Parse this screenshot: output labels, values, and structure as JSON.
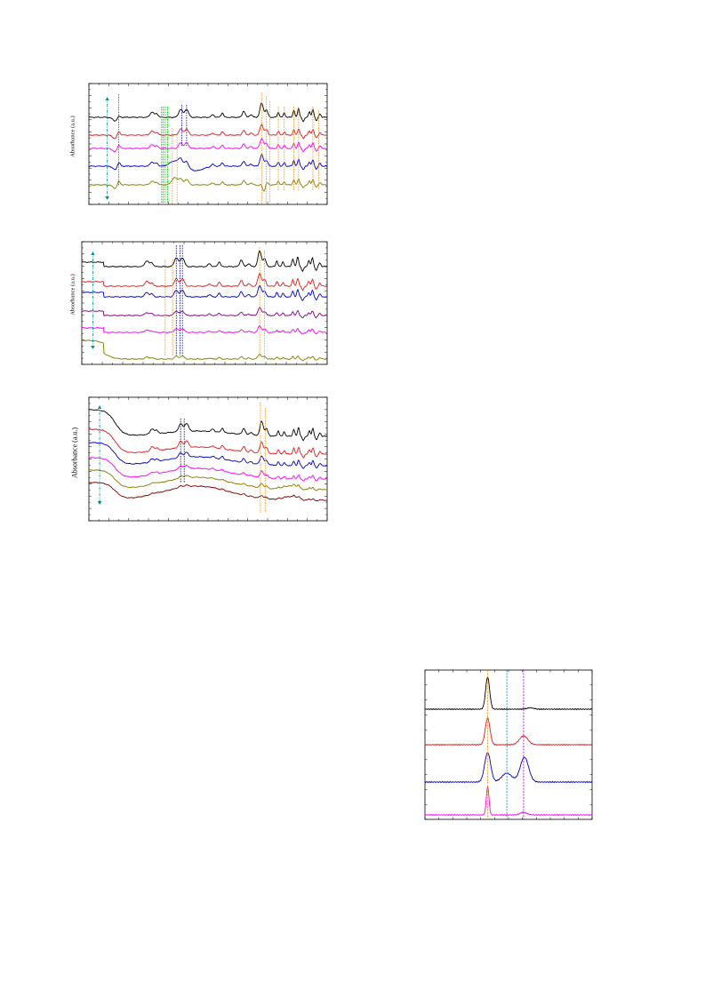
{
  "colors": {
    "black": "#000000",
    "red": "#e41a1c",
    "magenta": "#ff00ff",
    "blue": "#0000cc",
    "olive": "#808000",
    "purple": "#800080",
    "maroon": "#800000",
    "green": "#00dd00",
    "orange": "#ff8c00",
    "teal": "#008b8b",
    "violet": "#a000c8",
    "navy": "#000080"
  },
  "chart_data": [
    {
      "id": "a",
      "type": "line",
      "title": "",
      "xlabel": "",
      "ylabel": "Absorbance (a.u.)",
      "grid": false,
      "series": [
        {
          "color": "black"
        },
        {
          "color": "red"
        },
        {
          "color": "magenta"
        },
        {
          "color": "blue"
        },
        {
          "color": "olive"
        }
      ]
    },
    {
      "id": "b",
      "type": "line",
      "title": "",
      "xlabel": "",
      "ylabel": "Absorbance (a.u.)",
      "grid": false,
      "series": [
        {
          "color": "black"
        },
        {
          "color": "red"
        },
        {
          "color": "blue"
        },
        {
          "color": "purple"
        },
        {
          "color": "magenta"
        },
        {
          "color": "olive"
        }
      ]
    },
    {
      "id": "c",
      "type": "line",
      "title": "",
      "xlabel": "",
      "ylabel": "Absorbance (a.u.)",
      "grid": false,
      "series": [
        {
          "color": "black"
        },
        {
          "color": "red"
        },
        {
          "color": "blue"
        },
        {
          "color": "magenta"
        },
        {
          "color": "olive"
        },
        {
          "color": "maroon"
        }
      ]
    },
    {
      "id": "d",
      "type": "line",
      "title": "",
      "xlabel": "",
      "ylabel": "",
      "grid": false,
      "series": [
        {
          "color": "black"
        },
        {
          "color": "red"
        },
        {
          "color": "blue"
        },
        {
          "color": "magenta"
        }
      ]
    }
  ]
}
